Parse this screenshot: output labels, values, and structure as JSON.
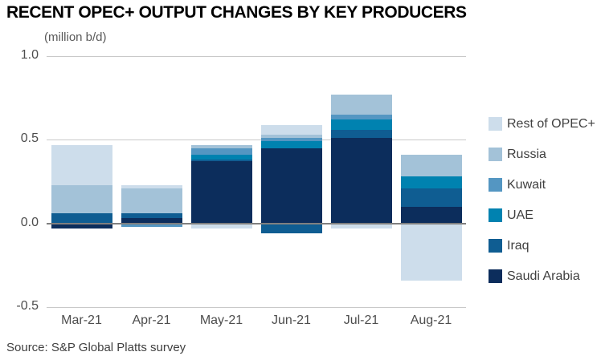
{
  "title": "RECENT OPEC+ OUTPUT CHANGES BY KEY PRODUCERS",
  "subtitle": "(million b/d)",
  "source": "Source: S&P Global Platts survey",
  "chart_data": {
    "type": "bar",
    "stacked": true,
    "title": "RECENT OPEC+ OUTPUT CHANGES BY KEY PRODUCERS",
    "unit_label": "(million b/d)",
    "categories": [
      "Mar-21",
      "Apr-21",
      "May-21",
      "Jun-21",
      "Jul-21",
      "Aug-21"
    ],
    "series": [
      {
        "name": "Rest of OPEC+",
        "color": "#cdddeb",
        "values": [
          0.24,
          0.02,
          -0.03,
          0.06,
          -0.03,
          -0.34
        ]
      },
      {
        "name": "Russia",
        "color": "#a3c2d8",
        "values": [
          0.17,
          0.15,
          0.02,
          0.02,
          0.12,
          0.13
        ]
      },
      {
        "name": "Kuwait",
        "color": "#5496c2",
        "values": [
          0.0,
          -0.02,
          0.04,
          0.02,
          0.03,
          0.0
        ]
      },
      {
        "name": "UAE",
        "color": "#0082b0",
        "values": [
          0.0,
          0.0,
          0.03,
          0.04,
          0.06,
          0.07
        ]
      },
      {
        "name": "Iraq",
        "color": "#0f5d92",
        "values": [
          0.06,
          0.03,
          0.01,
          -0.06,
          0.05,
          0.11
        ]
      },
      {
        "name": "Saudi Arabia",
        "color": "#0c2d5c",
        "values": [
          -0.03,
          0.03,
          0.37,
          0.45,
          0.51,
          0.1
        ]
      }
    ],
    "ylim": [
      -0.5,
      1.0
    ],
    "yticks": [
      {
        "label": "1.0",
        "value": 1.0
      },
      {
        "label": "0.5",
        "value": 0.5
      },
      {
        "label": "0.0",
        "value": 0.0
      },
      {
        "label": "-0.5",
        "value": -0.5
      }
    ],
    "grid": true,
    "legend_position": "right"
  },
  "colors": {
    "grid": "#c9c9c9",
    "zero_line": "#7f7f7f",
    "axis_text": "#4d4d4d",
    "legend_text": "#404040"
  }
}
